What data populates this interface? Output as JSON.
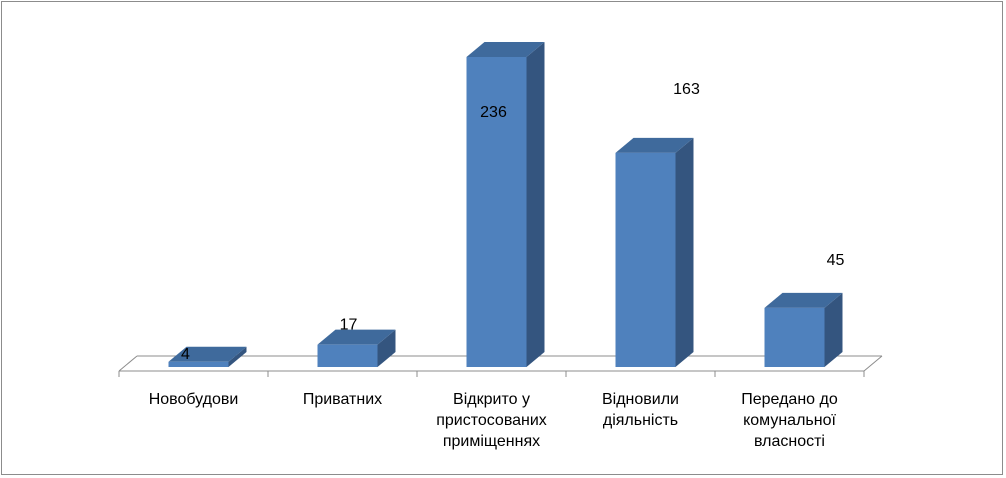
{
  "chart_data": {
    "type": "bar",
    "style": "3d-column",
    "categories": [
      [
        "Новобудови"
      ],
      [
        "Приватних"
      ],
      [
        "Відкрито у",
        "пристосованих",
        "приміщеннях"
      ],
      [
        "Відновили",
        "діяльність"
      ],
      [
        "Передано до",
        "комунальної",
        "власності"
      ]
    ],
    "values": [
      4,
      17,
      236,
      163,
      45
    ],
    "data_labels": [
      "4",
      "17",
      "236",
      "163",
      "45"
    ],
    "title": "",
    "xlabel": "",
    "ylabel": "",
    "ylim": [
      0,
      250
    ],
    "grid": false,
    "legend": "none",
    "colors": {
      "bar_front": "#4f81bd",
      "bar_side": "#34557f",
      "bar_top": "#3f6a9c",
      "floor_line": "#8c8c8c",
      "frame": "#8c8c8c"
    }
  }
}
